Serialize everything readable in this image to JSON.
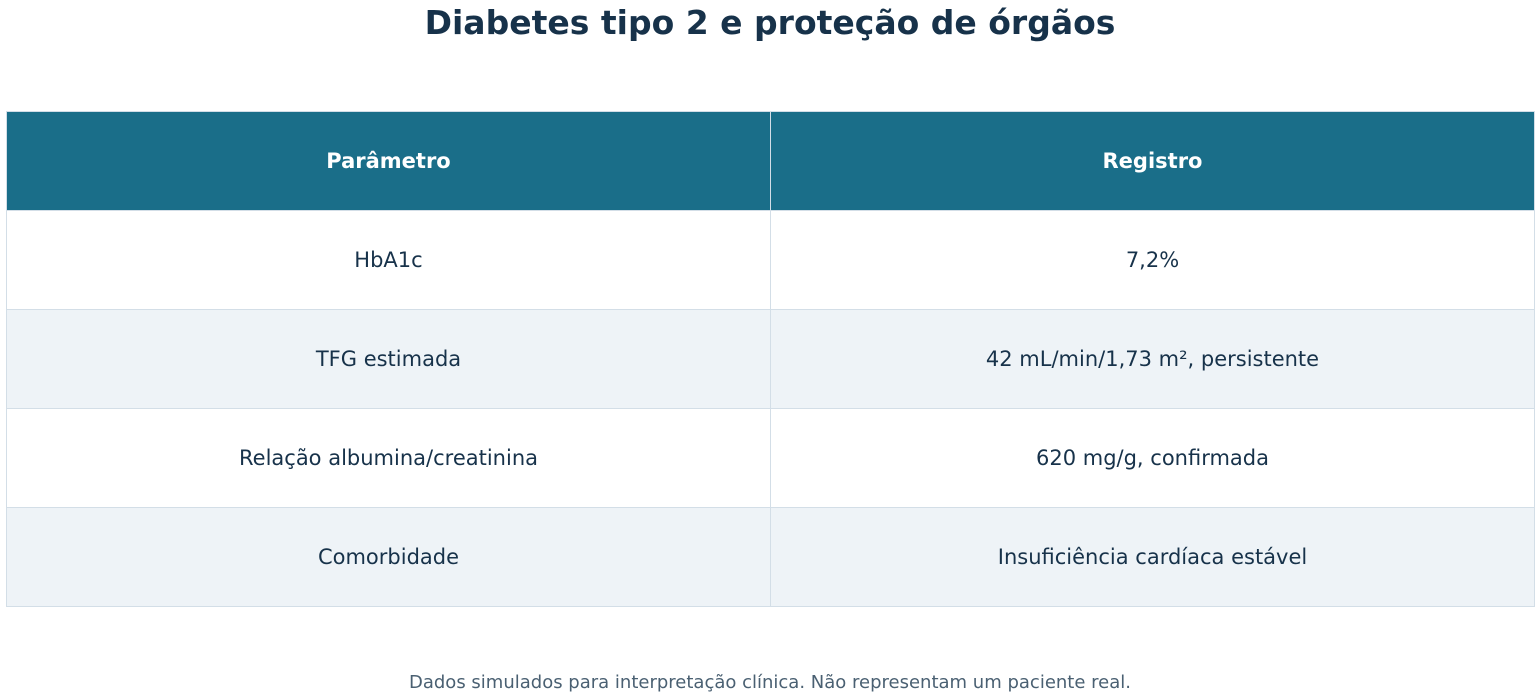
{
  "header": {
    "title": "Diabetes tipo 2 e proteção de órgãos"
  },
  "table": {
    "columns": [
      "Parâmetro",
      "Registro"
    ],
    "rows": [
      [
        "HbA1c",
        "7,2%"
      ],
      [
        "TFG estimada",
        "42 mL/min/1,73 m², persistente"
      ],
      [
        "Relação albumina/creatinina",
        "620 mg/g, confirmada"
      ],
      [
        "Comorbidade",
        "Insuficiência cardíaca estável"
      ]
    ]
  },
  "footer": {
    "note": "Dados simulados para interpretação clínica. Não representam um paciente real."
  }
}
